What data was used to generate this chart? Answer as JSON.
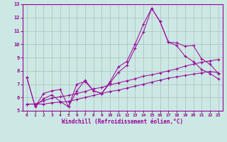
{
  "xlabel": "Windchill (Refroidissement éolien,°C)",
  "background_color": "#cce8e4",
  "grid_color": "#aabfbd",
  "line_color": "#990099",
  "xlim": [
    -0.5,
    23.5
  ],
  "ylim": [
    5,
    13
  ],
  "yticks": [
    5,
    6,
    7,
    8,
    9,
    10,
    11,
    12,
    13
  ],
  "xticks": [
    0,
    1,
    2,
    3,
    4,
    5,
    6,
    7,
    8,
    9,
    10,
    11,
    12,
    13,
    14,
    15,
    16,
    17,
    18,
    19,
    20,
    21,
    22,
    23
  ],
  "series": [
    {
      "x": [
        0,
        1,
        2,
        3,
        4,
        5,
        6,
        7,
        8,
        9,
        10,
        11,
        12,
        13,
        14,
        15,
        16,
        17,
        18,
        19,
        20,
        21,
        22,
        23
      ],
      "y": [
        7.5,
        5.3,
        6.3,
        6.5,
        6.6,
        5.3,
        6.5,
        7.3,
        6.5,
        6.3,
        7.2,
        8.3,
        8.7,
        10.0,
        11.5,
        12.7,
        11.7,
        10.15,
        10.1,
        9.85,
        9.9,
        8.9,
        8.5,
        7.8
      ]
    },
    {
      "x": [
        0,
        1,
        2,
        3,
        4,
        5,
        6,
        7,
        8,
        9,
        10,
        11,
        12,
        13,
        14,
        15,
        16,
        17,
        18,
        19,
        20,
        21,
        22,
        23
      ],
      "y": [
        7.5,
        5.3,
        5.9,
        6.2,
        5.7,
        5.3,
        7.0,
        7.2,
        6.5,
        6.3,
        7.1,
        7.9,
        8.4,
        9.7,
        10.9,
        12.7,
        11.7,
        10.15,
        9.9,
        9.1,
        8.7,
        8.1,
        7.8,
        7.4
      ]
    },
    {
      "x": [
        0,
        1,
        2,
        3,
        4,
        5,
        6,
        7,
        8,
        9,
        10,
        11,
        12,
        13,
        14,
        15,
        16,
        17,
        18,
        19,
        20,
        21,
        22,
        23
      ],
      "y": [
        5.5,
        5.5,
        5.75,
        5.95,
        6.05,
        6.15,
        6.3,
        6.45,
        6.65,
        6.75,
        6.95,
        7.1,
        7.25,
        7.4,
        7.6,
        7.7,
        7.85,
        8.0,
        8.15,
        8.35,
        8.5,
        8.65,
        8.75,
        8.85
      ]
    },
    {
      "x": [
        0,
        1,
        2,
        3,
        4,
        5,
        6,
        7,
        8,
        9,
        10,
        11,
        12,
        13,
        14,
        15,
        16,
        17,
        18,
        19,
        20,
        21,
        22,
        23
      ],
      "y": [
        5.5,
        5.5,
        5.5,
        5.6,
        5.65,
        5.7,
        5.85,
        6.0,
        6.15,
        6.3,
        6.45,
        6.55,
        6.7,
        6.85,
        7.0,
        7.15,
        7.3,
        7.45,
        7.55,
        7.65,
        7.75,
        7.85,
        7.95,
        7.85
      ]
    }
  ]
}
